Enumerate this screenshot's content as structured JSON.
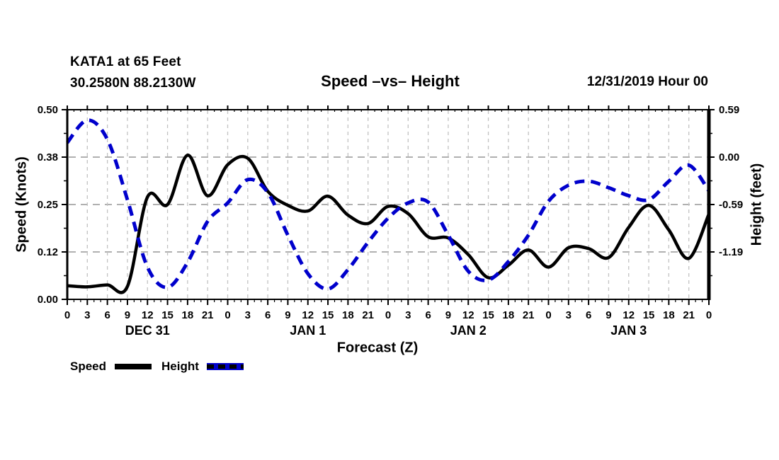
{
  "header": {
    "station_line1": "KATA1 at 65 Feet",
    "station_line2": "30.2580N 88.2130W",
    "title": "Speed –vs– Height",
    "datetime_label": "12/31/2019 Hour 00"
  },
  "colors": {
    "speed_line": "#000000",
    "height_line": "#0000cc",
    "grid_horizontal": "#b0b0b0",
    "grid_vertical": "#c2c2c2",
    "axis": "#000000",
    "background": "#ffffff",
    "text": "#000000"
  },
  "legend": {
    "speed_label": "Speed",
    "height_label": "Height"
  },
  "chart_data": {
    "type": "line",
    "title": "Speed –vs– Height",
    "xlabel": "Forecast (Z)",
    "x_axis": {
      "title": "Forecast (Z)",
      "hours_max": 96,
      "major_tick_step_hours": 3,
      "minor_tick_step_hours": 1,
      "tick_labels": [
        "0",
        "3",
        "6",
        "9",
        "12",
        "15",
        "18",
        "21",
        "0",
        "3",
        "6",
        "9",
        "12",
        "15",
        "18",
        "21",
        "0",
        "3",
        "6",
        "9",
        "12",
        "15",
        "18",
        "21",
        "0",
        "3",
        "6",
        "9",
        "12",
        "15",
        "18",
        "21",
        "0"
      ],
      "day_labels": [
        {
          "label": "DEC 31",
          "hour": 12
        },
        {
          "label": "JAN 1",
          "hour": 36
        },
        {
          "label": "JAN 2",
          "hour": 60
        },
        {
          "label": "JAN 3",
          "hour": 84
        }
      ]
    },
    "left_axis": {
      "title": "Speed (Knots)",
      "tick_labels": [
        "0.50",
        "0.38",
        "0.25",
        "0.12",
        "0.00"
      ],
      "range": [
        0.0,
        0.5
      ]
    },
    "right_axis": {
      "title": "Height (feet)",
      "tick_labels": [
        "0.59",
        "0.00",
        "-0.59",
        "-1.19"
      ],
      "range": [
        -1.77,
        0.59
      ]
    },
    "grid": true,
    "hours": [
      0,
      3,
      6,
      9,
      12,
      15,
      18,
      21,
      24,
      27,
      30,
      33,
      36,
      39,
      42,
      45,
      48,
      51,
      54,
      57,
      60,
      63,
      66,
      69,
      72,
      75,
      78,
      81,
      84,
      87,
      90,
      93,
      96
    ],
    "series": [
      {
        "name": "Speed",
        "axis": "left",
        "unit": "knots",
        "color": "#000000",
        "style": "solid",
        "values": [
          0.036,
          0.033,
          0.038,
          0.034,
          0.27,
          0.25,
          0.38,
          0.273,
          0.355,
          0.372,
          0.285,
          0.248,
          0.233,
          0.272,
          0.222,
          0.2,
          0.245,
          0.226,
          0.165,
          0.162,
          0.118,
          0.057,
          0.09,
          0.13,
          0.085,
          0.136,
          0.134,
          0.11,
          0.19,
          0.248,
          0.183,
          0.108,
          0.225
        ]
      },
      {
        "name": "Height",
        "axis": "right",
        "unit": "feet",
        "color": "#0000cc",
        "style": "dashed",
        "values": [
          0.18,
          0.46,
          0.22,
          -0.53,
          -1.37,
          -1.62,
          -1.31,
          -0.8,
          -0.57,
          -0.28,
          -0.44,
          -0.97,
          -1.45,
          -1.64,
          -1.4,
          -1.06,
          -0.76,
          -0.57,
          -0.56,
          -0.97,
          -1.42,
          -1.53,
          -1.3,
          -0.97,
          -0.55,
          -0.35,
          -0.3,
          -0.38,
          -0.48,
          -0.53,
          -0.3,
          -0.1,
          -0.42
        ]
      }
    ]
  }
}
